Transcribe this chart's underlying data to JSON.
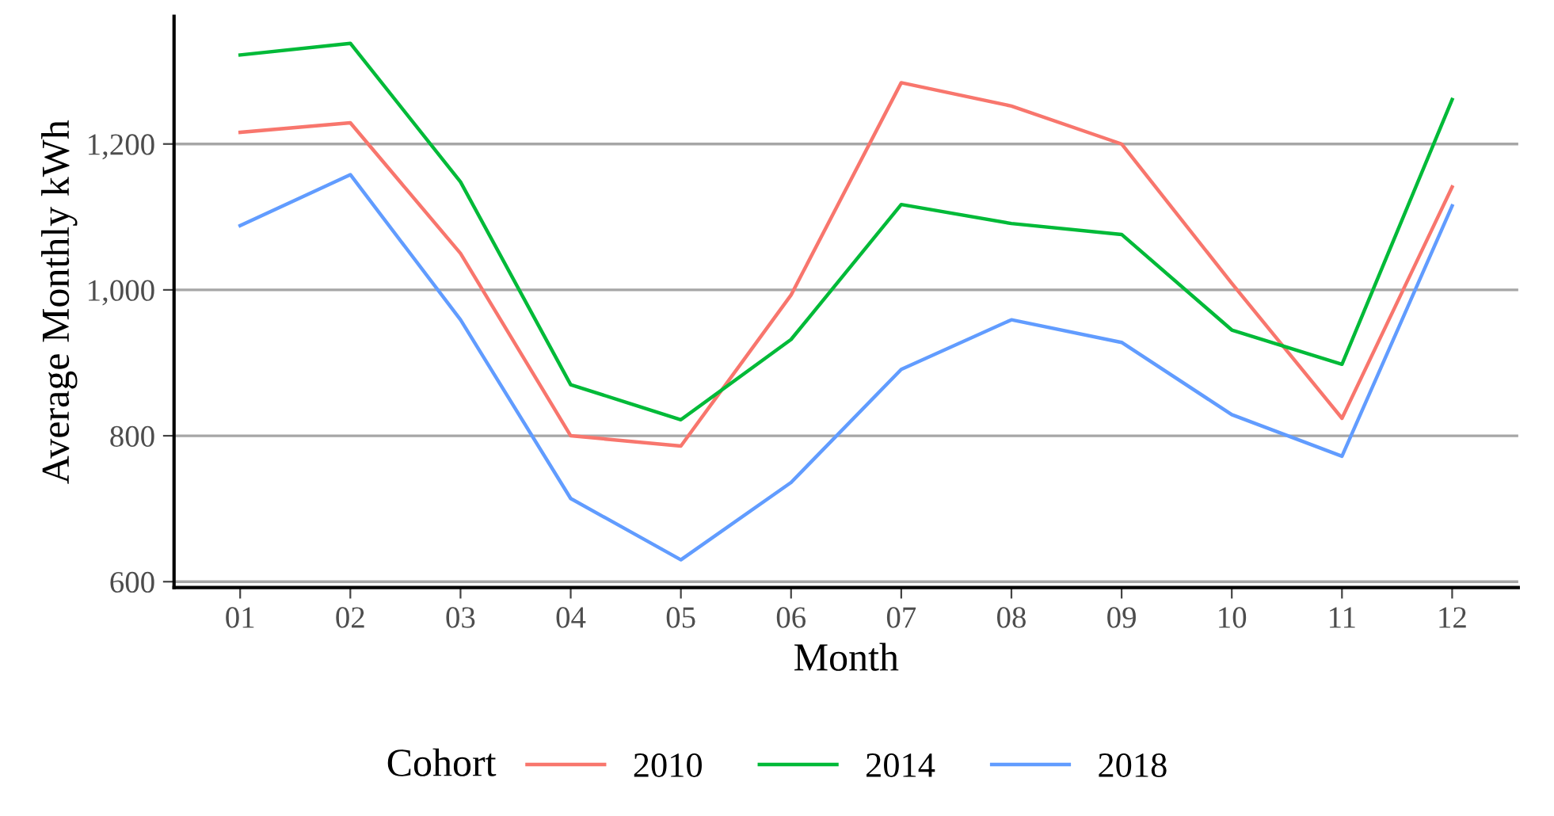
{
  "chart_data": {
    "type": "line",
    "xlabel": "Month",
    "ylabel": "Average Monthly kWh",
    "legend_title": "Cohort",
    "categories": [
      "01",
      "02",
      "03",
      "04",
      "05",
      "06",
      "07",
      "08",
      "09",
      "10",
      "11",
      "12"
    ],
    "series": [
      {
        "name": "2010",
        "color": "#f8766d",
        "values": [
          1216,
          1229,
          1050,
          800,
          786,
          993,
          1284,
          1252,
          1200,
          1009,
          824,
          1141
        ]
      },
      {
        "name": "2014",
        "color": "#00ba38",
        "values": [
          1322,
          1338,
          1148,
          870,
          822,
          932,
          1117,
          1091,
          1076,
          945,
          898,
          1261
        ]
      },
      {
        "name": "2018",
        "color": "#619cff",
        "values": [
          1088,
          1158,
          959,
          714,
          630,
          736,
          891,
          959,
          928,
          829,
          772,
          1115
        ]
      }
    ],
    "ylim": [
      592,
      1375
    ],
    "yticks": [
      600,
      {
        "value": 800,
        "label": "800"
      },
      {
        "value": 1000,
        "label": "1,000"
      },
      {
        "value": 1200,
        "label": "1,200"
      }
    ],
    "grid": "y",
    "legend": "bottom",
    "marker": "none",
    "line_style": "solid"
  }
}
